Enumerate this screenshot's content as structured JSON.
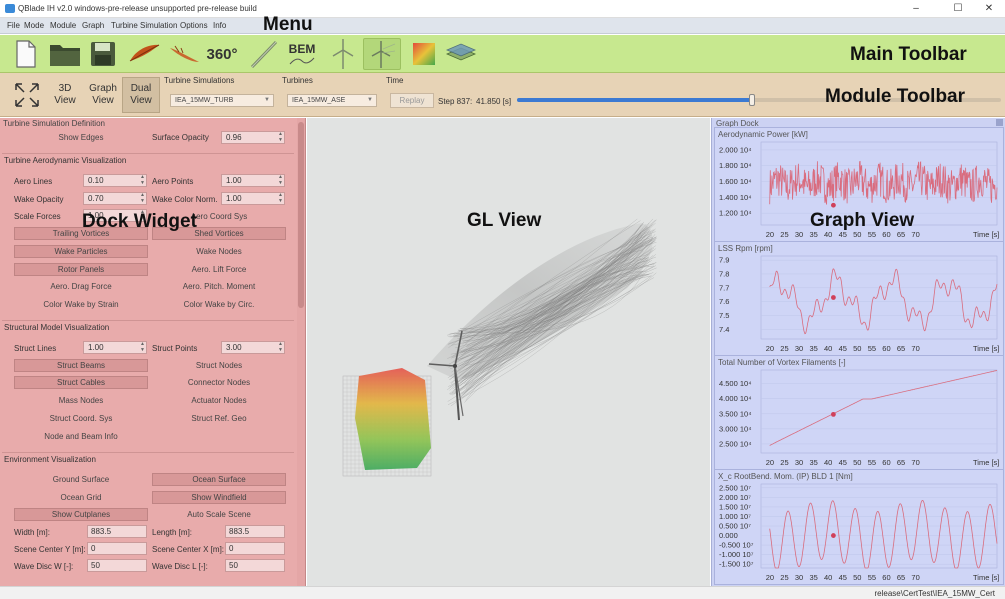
{
  "window": {
    "title": "QBlade IH v2.0 windows-pre-release unsupported pre-release build",
    "minimize": "–",
    "maximize": "☐",
    "close": "✕"
  },
  "menu": [
    "File",
    "Mode",
    "Module",
    "Graph",
    "Turbine Simulation",
    "Options",
    "Info"
  ],
  "annotations": {
    "menu": "Menu",
    "main_toolbar": "Main Toolbar",
    "module_toolbar": "Module Toolbar",
    "dock_widget": "Dock Widget",
    "gl_view": "GL View",
    "graph_view": "Graph View"
  },
  "main_toolbar": {
    "text_360": "360°",
    "text_bem": "BEM",
    "icons": [
      "new-file-icon",
      "open-folder-icon",
      "save-icon",
      "airfoil-icon",
      "polar-icon",
      "360-extrapolation-icon",
      "blade-design-icon",
      "bem-icon",
      "turbine-icon",
      "turbine-simulation-icon",
      "terrain-icon",
      "windfield-icon"
    ]
  },
  "module_toolbar": {
    "fit": "fit-view-icon",
    "view3d": "3D View",
    "graphview": "Graph View",
    "dualview": "Dual View",
    "turbine_sims_label": "Turbine Simulations",
    "turbine_sims_value": "IEA_15MW_TURB",
    "turbines_label": "Turbines",
    "turbines_value": "IEA_15MW_ASE",
    "time_label": "Time",
    "replay": "Replay",
    "step": "Step 837:",
    "time_value": "41.850 [s]",
    "slider_fraction": 0.485
  },
  "dock": {
    "title": "Turbine Simulation Definition",
    "show_edges": "Show Edges",
    "surface_opacity_label": "Surface Opacity",
    "surface_opacity": "0.96",
    "aero_title": "Turbine Aerodynamic Visualization",
    "aero_lines_label": "Aero Lines",
    "aero_lines": "0.10",
    "aero_points_label": "Aero Points",
    "aero_points": "1.00",
    "wake_opacity_label": "Wake Opacity",
    "wake_opacity": "0.70",
    "wake_color_norm_label": "Wake Color Norm.",
    "wake_color_norm": "1.00",
    "scale_forces_label": "Scale Forces",
    "scale_forces": "1.00",
    "aero_coord_sys": "Aero Coord Sys",
    "trailing_vortices": "Trailing Vortices",
    "shed_vortices": "Shed Vortices",
    "wake_particles": "Wake Particles",
    "wake_nodes": "Wake Nodes",
    "rotor_panels": "Rotor Panels",
    "aero_lift_force": "Aero. Lift Force",
    "aero_drag_force": "Aero. Drag Force",
    "aero_pitch_moment": "Aero. Pitch. Moment",
    "color_wake_strain": "Color Wake by Strain",
    "color_wake_circ": "Color Wake by Circ.",
    "struct_title": "Structural Model Visualization",
    "struct_lines_label": "Struct Lines",
    "struct_lines": "1.00",
    "struct_points_label": "Struct Points",
    "struct_points": "3.00",
    "struct_beams": "Struct Beams",
    "struct_nodes": "Struct Nodes",
    "struct_cables": "Struct Cables",
    "connector_nodes": "Connector Nodes",
    "mass_nodes": "Mass Nodes",
    "actuator_nodes": "Actuator Nodes",
    "struct_coord_sys": "Struct Coord. Sys",
    "struct_ref_geo": "Struct Ref. Geo",
    "node_beam_info": "Node and Beam Info",
    "env_title": "Environment Visualization",
    "ground_surface": "Ground Surface",
    "ocean_surface": "Ocean Surface",
    "ocean_grid": "Ocean Grid",
    "show_windfield": "Show Windfield",
    "show_cutplanes": "Show Cutplanes",
    "auto_scale_scene": "Auto Scale Scene",
    "width_label": "Width [m]:",
    "width": "883.5",
    "length_label": "Length [m]:",
    "length": "883.5",
    "scene_center_y_label": "Scene Center Y [m]:",
    "scene_center_y": "0",
    "scene_center_x_label": "Scene Center X [m]:",
    "scene_center_x": "0",
    "wave_disc_w_label": "Wave Disc W [-]:",
    "wave_disc_w": "50",
    "wave_disc_l_label": "Wave Disc L [-]:",
    "wave_disc_l": "50"
  },
  "graph_dock": {
    "title": "Graph Dock"
  },
  "chart_data": [
    {
      "type": "line",
      "title": "Aerodynamic Power [kW]",
      "xlabel": "Time [s]",
      "xlim": [
        17,
        98
      ],
      "ylim": [
        10500,
        21000
      ],
      "yticks": [
        "1.200 10⁴",
        "1.400 10⁴",
        "1.600 10⁴",
        "1.800 10⁴",
        "2.000 10⁴"
      ],
      "ytick_values": [
        12000,
        14000,
        16000,
        18000,
        20000
      ],
      "xticks": [
        20,
        25,
        30,
        35,
        40,
        45,
        50,
        55,
        60,
        65,
        70
      ],
      "marker": [
        41.85,
        13000
      ],
      "kind": "noise",
      "base": 15800,
      "amp": 2300,
      "seed": 7
    },
    {
      "type": "line",
      "title": "LSS Rpm [rpm]",
      "xlabel": "Time [s]",
      "xlim": [
        17,
        98
      ],
      "ylim": [
        7.33,
        7.93
      ],
      "yticks": [
        "7.4",
        "7.5",
        "7.6",
        "7.7",
        "7.8",
        "7.9"
      ],
      "ytick_values": [
        7.4,
        7.5,
        7.6,
        7.7,
        7.8,
        7.9
      ],
      "xticks": [
        20,
        25,
        30,
        35,
        40,
        45,
        50,
        55,
        60,
        65,
        70
      ],
      "marker": [
        41.85,
        7.63
      ],
      "kind": "rpm",
      "seed": 3
    },
    {
      "type": "line",
      "title": "Total Number of Vortex Filaments [-]",
      "xlabel": "Time [s]",
      "xlim": [
        17,
        98
      ],
      "ylim": [
        22000,
        49500
      ],
      "yticks": [
        "2.500 10⁴",
        "3.000 10⁴",
        "3.500 10⁴",
        "4.000 10⁴",
        "4.500 10⁴"
      ],
      "ytick_values": [
        25000,
        30000,
        35000,
        40000,
        45000
      ],
      "xticks": [
        20,
        25,
        30,
        35,
        40,
        45,
        50,
        55,
        60,
        65,
        70
      ],
      "marker": [
        41.85,
        34800
      ],
      "kind": "vortex"
    },
    {
      "type": "line",
      "title": "X_c RootBend. Mom. (IP) BLD 1 [Nm]",
      "xlabel": "Time [s]",
      "xlim": [
        17,
        98
      ],
      "ylim": [
        -17000000,
        27000000
      ],
      "yticks": [
        "-1.500 10⁷",
        "-1.000 10⁷",
        "-0.500 10⁷",
        "0.000",
        "0.500 10⁷",
        "1.000 10⁷",
        "1.500 10⁷",
        "2.000 10⁷",
        "2.500 10⁷"
      ],
      "ytick_values": [
        -15000000,
        -10000000,
        -5000000,
        0,
        5000000,
        10000000,
        15000000,
        20000000,
        25000000
      ],
      "xticks": [
        20,
        25,
        30,
        35,
        40,
        45,
        50,
        55,
        60,
        65,
        70
      ],
      "marker": [
        41.85,
        0
      ],
      "kind": "sine",
      "amp": 15500000,
      "period": 7.7,
      "phase": 0.3
    }
  ],
  "status": "release\\CertTest\\IEA_15MW_Cert"
}
